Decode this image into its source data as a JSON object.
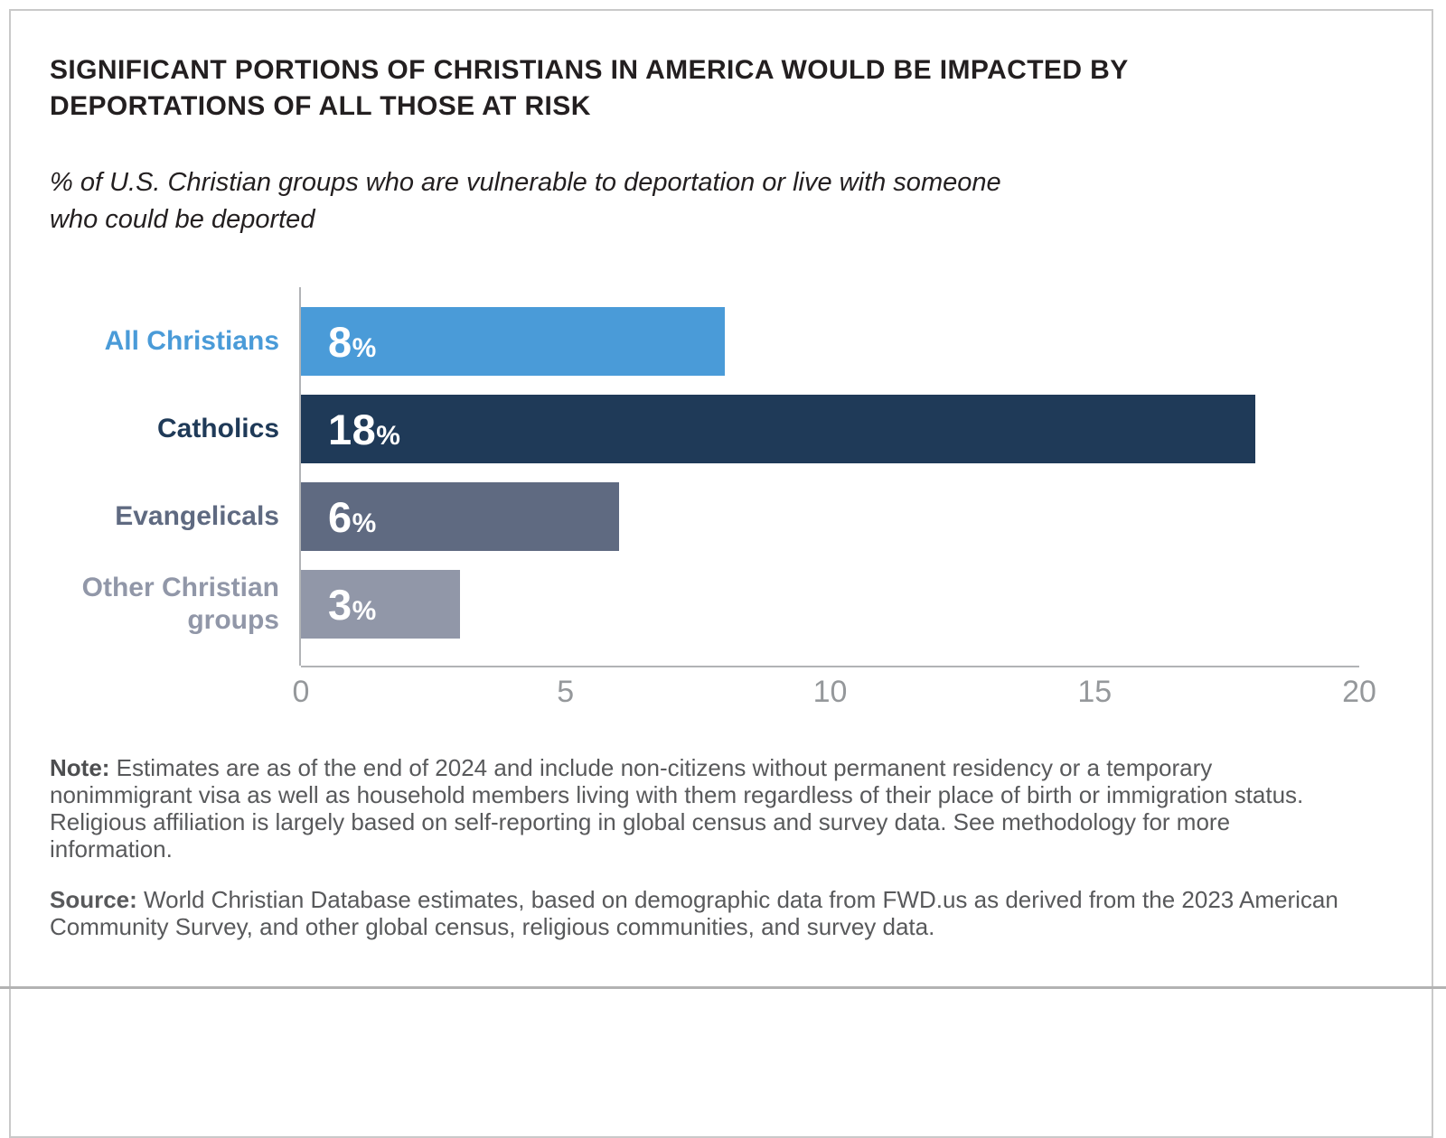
{
  "header": {
    "title_lines": [
      "SIGNIFICANT PORTIONS OF CHRISTIANS IN AMERICA WOULD BE IMPACTED BY",
      "DEPORTATIONS OF ALL THOSE AT RISK"
    ],
    "subtitle_lines": [
      "% of U.S. Christian groups who are vulnerable to deportation or live with someone",
      "who could be deported"
    ]
  },
  "chart_data": {
    "type": "bar",
    "orientation": "horizontal",
    "title": "SIGNIFICANT PORTIONS OF CHRISTIANS IN AMERICA WOULD BE IMPACTED BY DEPORTATIONS OF ALL THOSE AT RISK",
    "subtitle": "% of U.S. Christian groups who are vulnerable to deportation or live with someone who could be deported",
    "categories": [
      "All Christians",
      "Catholics",
      "Evangelicals",
      "Other Christian groups"
    ],
    "values": [
      8,
      18,
      6,
      3
    ],
    "value_labels": [
      "8%",
      "18%",
      "6%",
      "3%"
    ],
    "bar_colors": [
      "#4a9bd8",
      "#1f3a58",
      "#5f6a81",
      "#9197a8"
    ],
    "label_colors": [
      "#4a9bd8",
      "#1f3a58",
      "#5f6a81",
      "#9197a8"
    ],
    "x_ticks": [
      "0",
      "5",
      "10",
      "15",
      "20"
    ],
    "xlim": [
      0,
      20
    ],
    "xlabel": "",
    "ylabel": "",
    "grid": false,
    "legend": false,
    "axis_color": "#b1b3b6",
    "tick_label_color": "#95989b"
  },
  "note": {
    "label": "Note:",
    "text": " Estimates are as of the end of 2024 and include non-citizens without permanent residency or a temporary nonimmigrant visa as well as household members living with them regardless of their place of birth or immigration status. Religious affiliation is largely based on self-reporting in global census and survey data. See methodology for more information."
  },
  "source": {
    "label": "Source:",
    "text": " World Christian Database estimates, based on demographic data from FWD.us as derived from the 2023 American Community Survey, and other global census, religious communities, and survey data."
  }
}
